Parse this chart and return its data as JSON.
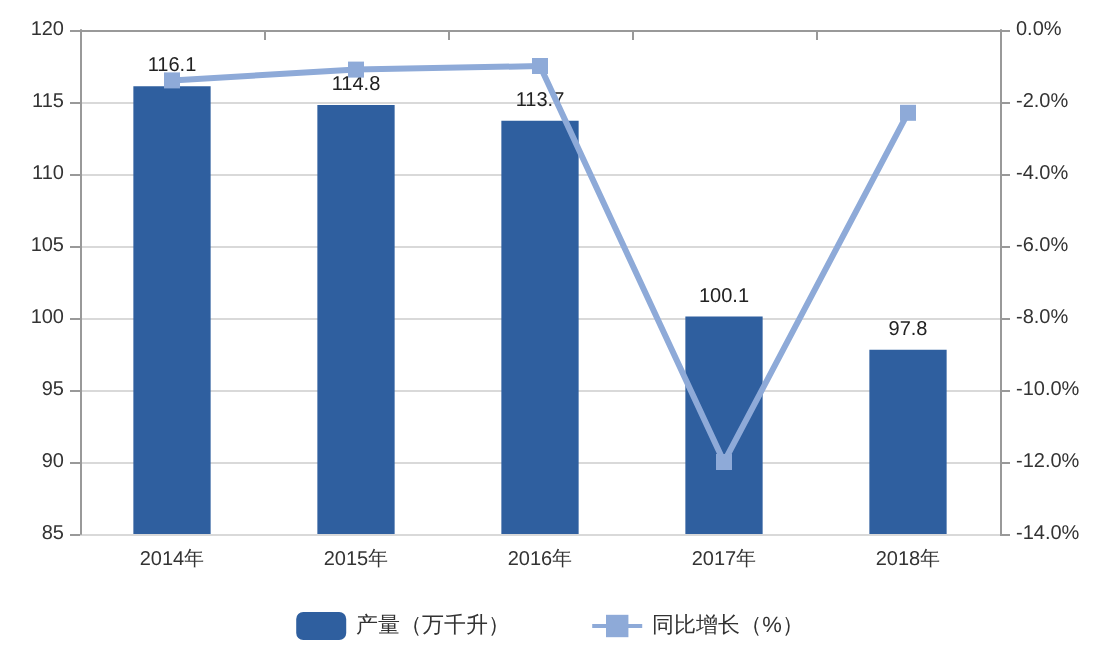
{
  "chart_data": {
    "type": "bar",
    "categories": [
      "2014年",
      "2015年",
      "2016年",
      "2017年",
      "2018年"
    ],
    "series": [
      {
        "name": "产量（万千升）",
        "color": "#2f5f9f",
        "values": [
          116.1,
          114.8,
          113.7,
          100.1,
          97.8
        ],
        "value_labels": [
          "116.1",
          "114.8",
          "113.7",
          "100.1",
          "97.8"
        ]
      },
      {
        "name": "同比增长（%）",
        "type": "line",
        "axis": "y2",
        "color": "#8eaad8",
        "marker": "square",
        "values": [
          -1.4,
          -1.1,
          -1.0,
          -12.0,
          -2.3
        ]
      }
    ],
    "ylim": [
      85,
      120
    ],
    "yticks": [
      85,
      90,
      95,
      100,
      105,
      110,
      115,
      120
    ],
    "y2lim": [
      -14,
      0
    ],
    "y2ticks": [
      {
        "value": -14,
        "label": "-14.0%"
      },
      {
        "value": -12,
        "label": "-12.0%"
      },
      {
        "value": -10,
        "label": "-10.0%"
      },
      {
        "value": -8,
        "label": "-8.0%"
      },
      {
        "value": -6,
        "label": "-6.0%"
      },
      {
        "value": -4,
        "label": "-4.0%"
      },
      {
        "value": -2,
        "label": "-2.0%"
      },
      {
        "value": 0,
        "label": "0.0%"
      }
    ],
    "grid": "y",
    "legend": "bottom"
  }
}
